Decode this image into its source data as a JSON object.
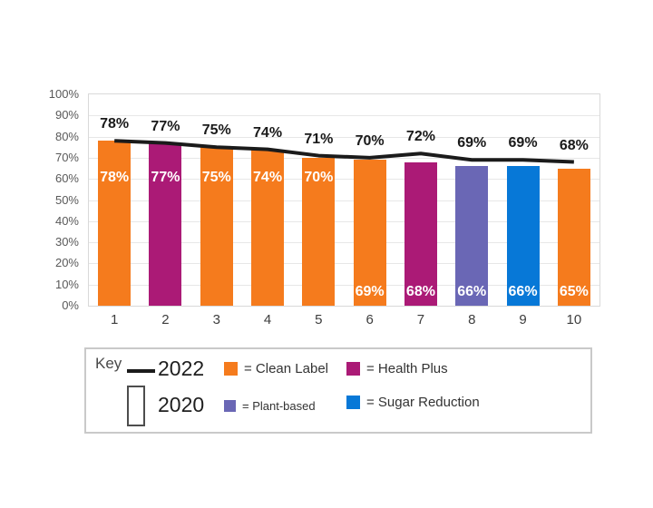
{
  "chart_data": {
    "type": "bar",
    "title": "",
    "categories": [
      "1",
      "2",
      "3",
      "4",
      "5",
      "6",
      "7",
      "8",
      "9",
      "10"
    ],
    "ylim": [
      0,
      100
    ],
    "ytick_step": 10,
    "ytick_suffix": "%",
    "grid": true,
    "legend_position": "bottom",
    "colors": {
      "clean-label": "#f57b1d",
      "health-plus": "#ab1a76",
      "plant-based": "#6a67b5",
      "sugar-reduction": "#0778d7",
      "line-2022": "#1b1b1b"
    },
    "series": [
      {
        "name": "2020",
        "type": "bar",
        "values": [
          78,
          77,
          75,
          74,
          70,
          69,
          68,
          66,
          66,
          65
        ],
        "labels": [
          "78%",
          "77%",
          "75%",
          "74%",
          "70%",
          "69%",
          "68%",
          "66%",
          "66%",
          "65%"
        ],
        "label_positions": [
          "upper",
          "upper",
          "upper",
          "upper",
          "upper",
          "lower",
          "lower",
          "lower",
          "lower",
          "lower"
        ],
        "segment_keys": [
          "clean-label",
          "health-plus",
          "clean-label",
          "clean-label",
          "clean-label",
          "clean-label",
          "health-plus",
          "plant-based",
          "sugar-reduction",
          "clean-label"
        ]
      },
      {
        "name": "2022",
        "type": "line",
        "color_key": "line-2022",
        "values": [
          78,
          77,
          75,
          74,
          71,
          70,
          72,
          69,
          69,
          68
        ],
        "labels": [
          "78%",
          "77%",
          "75%",
          "74%",
          "71%",
          "70%",
          "72%",
          "69%",
          "69%",
          "68%"
        ]
      }
    ]
  },
  "key": {
    "title": "Key",
    "line_series_label": "2022",
    "bar_series_label": "2020",
    "items": [
      {
        "key": "clean-label",
        "label": "= Clean Label",
        "color": "#f57b1d"
      },
      {
        "key": "health-plus",
        "label": "= Health Plus",
        "color": "#ab1a76"
      },
      {
        "key": "plant-based",
        "label": "= Plant-based",
        "color": "#6a67b5"
      },
      {
        "key": "sugar-reduction",
        "label": "= Sugar Reduction",
        "color": "#0778d7"
      }
    ]
  }
}
